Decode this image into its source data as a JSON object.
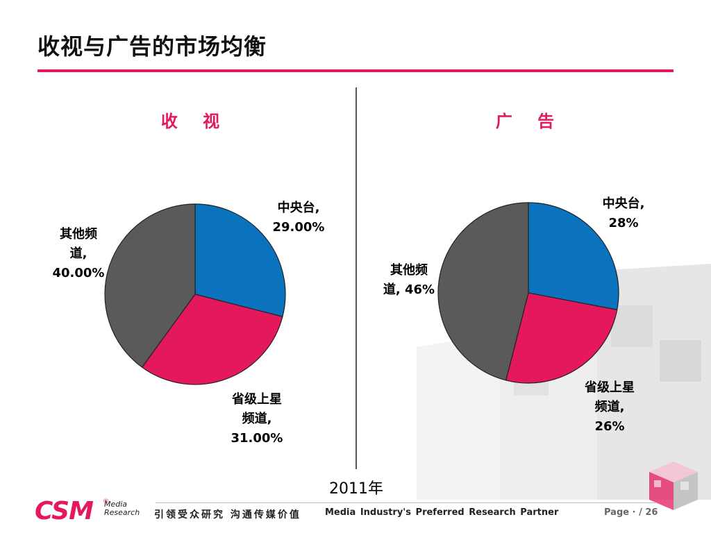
{
  "slide": {
    "title": "收视与广告的市场均衡",
    "year_label": "2011年"
  },
  "footer": {
    "logo_text": "CSM",
    "logo_sub_line1": "Media",
    "logo_sub_line2": "Research",
    "slogan_cn": "引领受众研究 沟通传媒价值",
    "slogan_en": "Media Industry's Preferred Research Partner",
    "page_label": "Page  · / 26"
  },
  "colors": {
    "accent": "#e3195c",
    "cctv": "#0b72bd",
    "provincial": "#e3195c",
    "other": "#5a5a5a"
  },
  "chart_data": [
    {
      "type": "pie",
      "title": "收 视",
      "slices": [
        {
          "name": "中央台",
          "value": 29.0,
          "label_line1": "中央台,",
          "label_line2": "29.00%",
          "label_line3": ""
        },
        {
          "name": "省级上星频道",
          "value": 31.0,
          "label_line1": "省级上星",
          "label_line2": "频道,",
          "label_line3": "31.00%"
        },
        {
          "name": "其他频道",
          "value": 40.0,
          "label_line1": "其他频",
          "label_line2": "道,",
          "label_line3": "40.00%"
        }
      ]
    },
    {
      "type": "pie",
      "title": "广 告",
      "slices": [
        {
          "name": "中央台",
          "value": 28,
          "label_line1": "中央台,",
          "label_line2": "28%",
          "label_line3": ""
        },
        {
          "name": "省级上星频道",
          "value": 26,
          "label_line1": "省级上星",
          "label_line2": "频道,",
          "label_line3": "26%"
        },
        {
          "name": "其他频道",
          "value": 46,
          "label_line1": "其他频",
          "label_line2": "道, 46%",
          "label_line3": ""
        }
      ]
    }
  ]
}
